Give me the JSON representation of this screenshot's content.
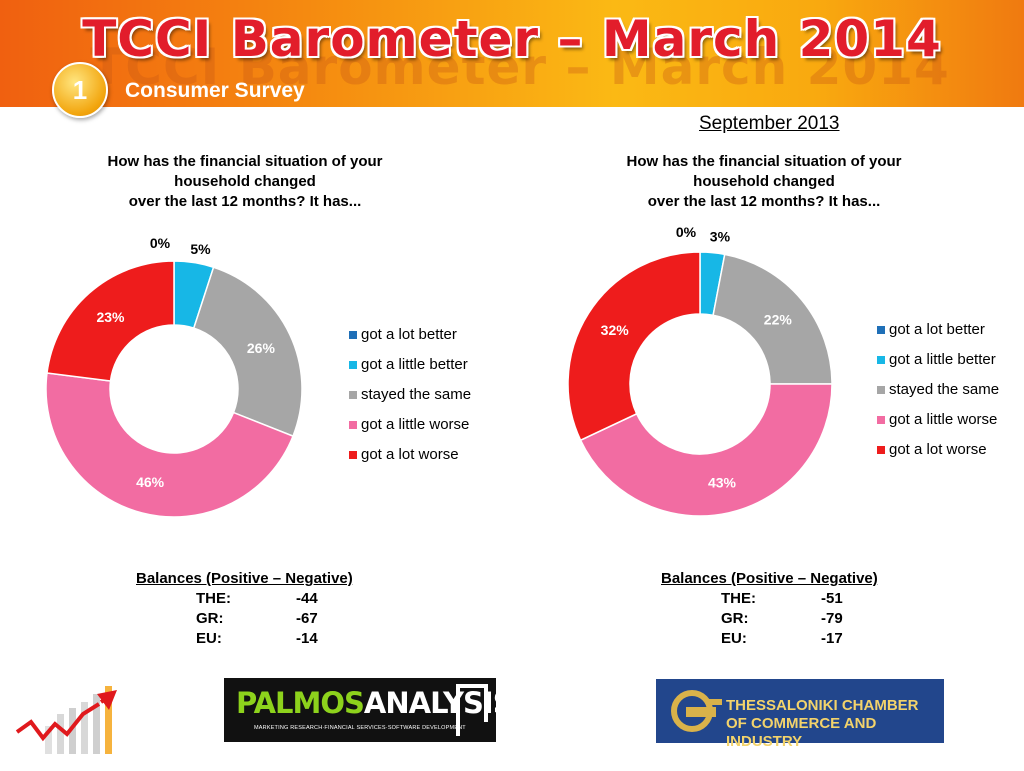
{
  "header": {
    "title": "TCCI Barometer – March 2014",
    "badge": "1",
    "subtitle": "Consumer Survey"
  },
  "right_period": "September 2013",
  "legend_items": [
    "got a lot better",
    "got a little better",
    "stayed the same",
    "got a little worse",
    "got a lot worse"
  ],
  "colors": {
    "got_a_lot_better": "#1f6fb7",
    "got_a_little_better": "#17b7e6",
    "stayed_the_same": "#a6a6a6",
    "got_a_little_worse": "#f26ca2",
    "got_a_lot_worse": "#ee1c1c"
  },
  "chart_data": [
    {
      "type": "pie",
      "title": "How has the financial situation of your household changed over the last 12 months? It has...",
      "title_lines": [
        "How has the financial situation of your",
        "household changed",
        "over the last 12 months? It has..."
      ],
      "categories": [
        "got a lot better",
        "got a little better",
        "stayed the same",
        "got a little worse",
        "got a lot worse"
      ],
      "values": [
        0,
        5,
        26,
        46,
        23
      ],
      "labels": [
        "0%",
        "5%",
        "26%",
        "46%",
        "23%"
      ],
      "legend": "right"
    },
    {
      "type": "pie",
      "title": "How has the financial situation of your household changed over the last 12 months? It has...",
      "title_lines": [
        "How has the financial situation of your",
        "household changed",
        "over the last 12 months? It has..."
      ],
      "categories": [
        "got a lot better",
        "got a little better",
        "stayed the same",
        "got a little worse",
        "got a lot worse"
      ],
      "values": [
        0,
        3,
        22,
        43,
        32
      ],
      "labels": [
        "0%",
        "3%",
        "22%",
        "43%",
        "32%"
      ],
      "legend": "right"
    }
  ],
  "balances": [
    {
      "heading": "Balances (Positive – Negative)",
      "rows": [
        {
          "label": "THE:",
          "value": "-44"
        },
        {
          "label": "GR:",
          "value": "-67"
        },
        {
          "label": "EU:",
          "value": "-14"
        }
      ]
    },
    {
      "heading": "Balances (Positive – Negative)",
      "rows": [
        {
          "label": "THE:",
          "value": "-51"
        },
        {
          "label": "GR:",
          "value": "-79"
        },
        {
          "label": "EU:",
          "value": "-17"
        }
      ]
    }
  ],
  "logos": {
    "palmos_name_a": "PALMOS",
    "palmos_name_b": "ANALYSIS",
    "palmos_tagline": "MARKETING RESEARCH·FINANCIAL SERVICES·SOFTWARE DEVELOPMENT",
    "tcci_line1": "THESSALONIKI CHAMBER",
    "tcci_line2": "OF COMMERCE AND INDUSTRY"
  }
}
